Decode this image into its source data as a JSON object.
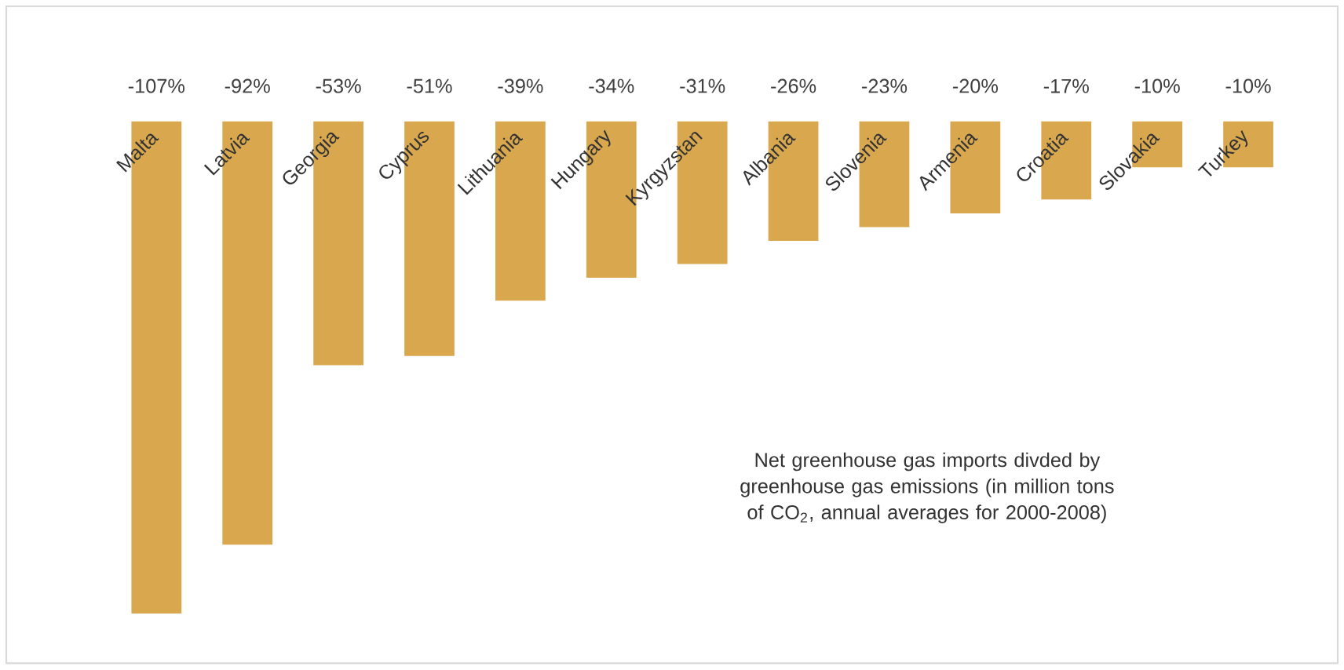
{
  "chart_data": {
    "type": "bar",
    "categories": [
      "Malta",
      "Latvia",
      "Georgia",
      "Cyprus",
      "Lithuania",
      "Hungary",
      "Kyrgyzstan",
      "Albania",
      "Slovenia",
      "Armenia",
      "Croatia",
      "Slovakia",
      "Turkey"
    ],
    "values": [
      -107,
      -92,
      -53,
      -51,
      -39,
      -34,
      -31,
      -26,
      -23,
      -20,
      -17,
      -10,
      -10
    ],
    "value_labels": [
      "-107%",
      "-92%",
      "-53%",
      "-51%",
      "-39%",
      "-34%",
      "-31%",
      "-26%",
      "-23%",
      "-20%",
      "-17%",
      "-10%",
      "-10%"
    ],
    "color": "#d9a84e",
    "annotations": [
      "Net greenhouse gas imports divded by greenhouse gas emissions (in million tons of CO$_{2}$, annual averages for 2000-2008)"
    ]
  }
}
